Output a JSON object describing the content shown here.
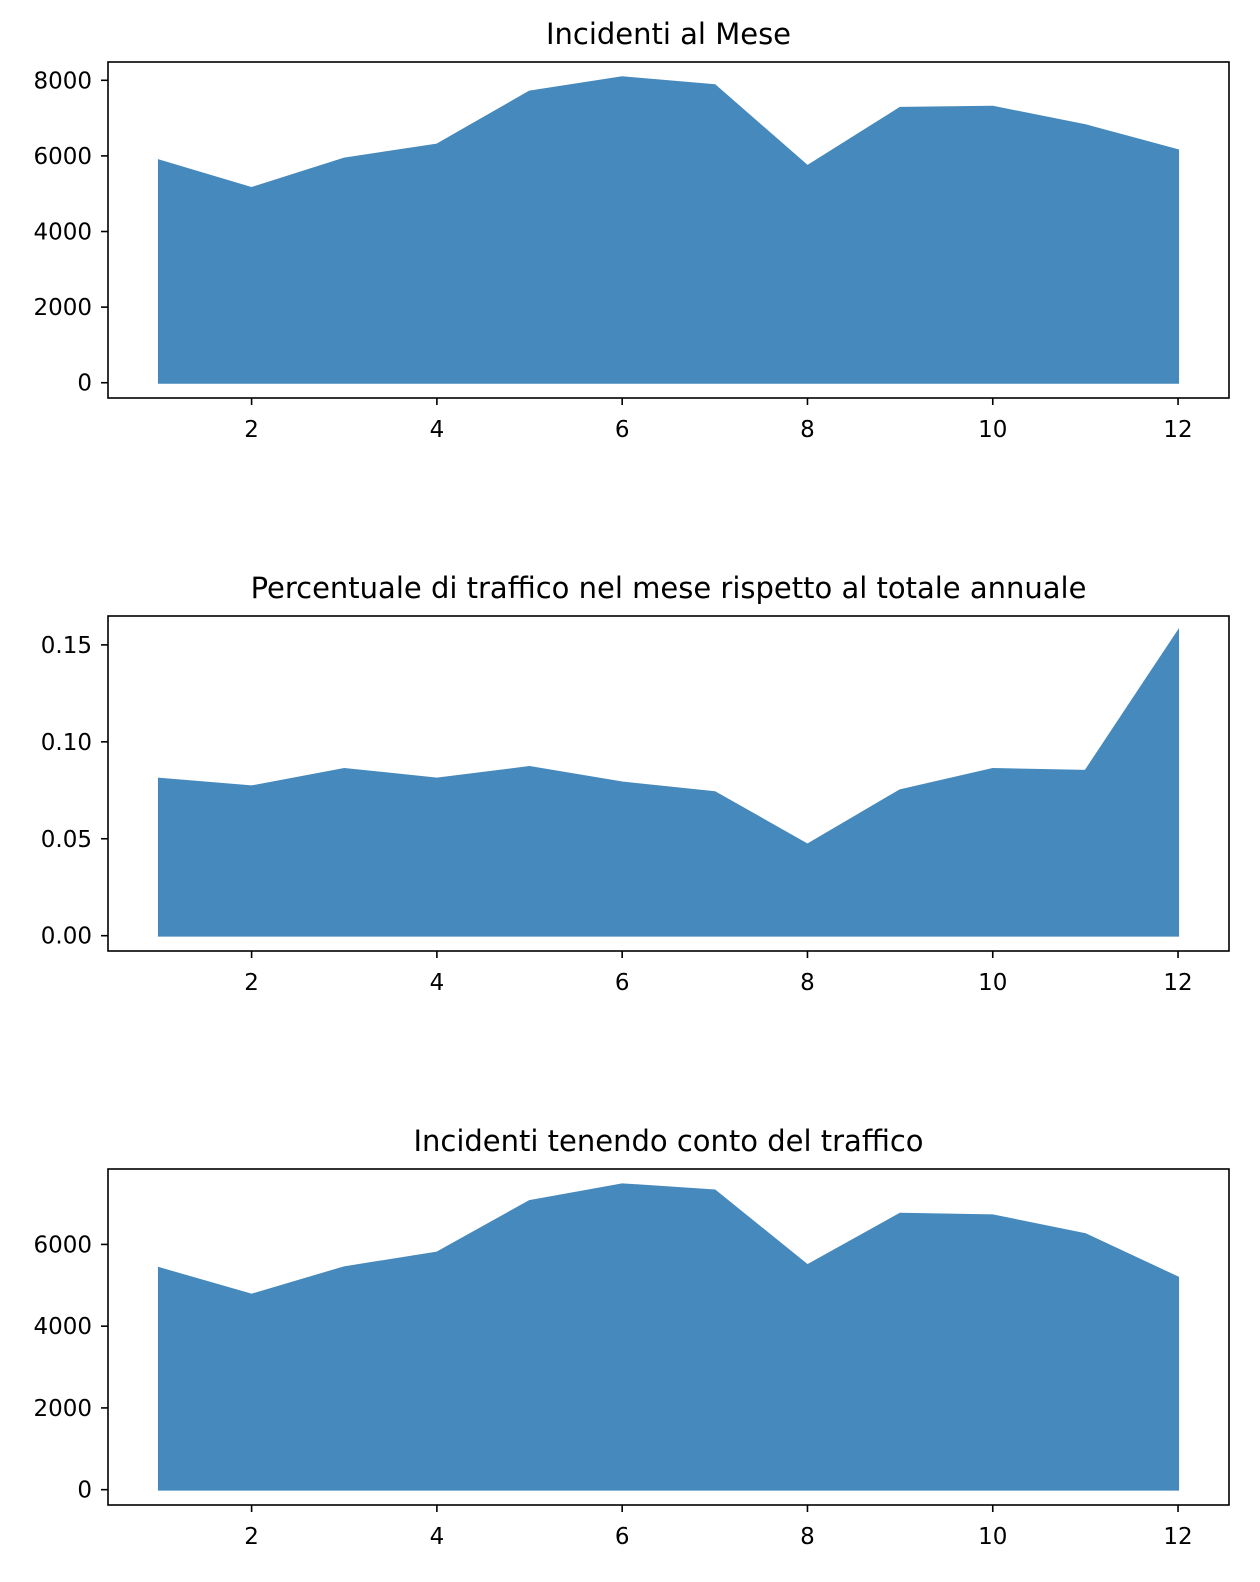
{
  "chart_data": [
    {
      "type": "area",
      "title": "Incidenti al Mese",
      "xlabel": "",
      "ylabel": "",
      "x": [
        1,
        2,
        3,
        4,
        5,
        6,
        7,
        8,
        9,
        10,
        11,
        12
      ],
      "series": [
        {
          "values": [
            5880,
            5150,
            5930,
            6300,
            7700,
            8080,
            7870,
            5730,
            7270,
            7300,
            6810,
            6150
          ]
        }
      ],
      "xlim": [
        0.45,
        12.55
      ],
      "ylim": [
        -404,
        8484
      ],
      "x_ticks": [
        2,
        4,
        6,
        8,
        10,
        12
      ],
      "x_tick_labels": [
        "2",
        "4",
        "6",
        "8",
        "10",
        "12"
      ],
      "y_ticks": [
        0,
        2000,
        4000,
        6000,
        8000
      ],
      "y_tick_labels": [
        "0",
        "2000",
        "4000",
        "6000",
        "8000"
      ],
      "grid": false,
      "legend": "none",
      "fill_color": "#4689BC"
    },
    {
      "type": "area",
      "title": "Percentuale di traffico nel mese rispetto al totale annuale",
      "xlabel": "",
      "ylabel": "",
      "x": [
        1,
        2,
        3,
        4,
        5,
        6,
        7,
        8,
        9,
        10,
        11,
        12
      ],
      "series": [
        {
          "values": [
            0.081,
            0.077,
            0.086,
            0.081,
            0.087,
            0.079,
            0.074,
            0.047,
            0.075,
            0.086,
            0.085,
            0.157
          ]
        }
      ],
      "xlim": [
        0.45,
        12.55
      ],
      "ylim": [
        -0.0079,
        0.1649
      ],
      "x_ticks": [
        2,
        4,
        6,
        8,
        10,
        12
      ],
      "x_tick_labels": [
        "2",
        "4",
        "6",
        "8",
        "10",
        "12"
      ],
      "y_ticks": [
        0.0,
        0.05,
        0.1,
        0.15
      ],
      "y_tick_labels": [
        "0.00",
        "0.05",
        "0.10",
        "0.15"
      ],
      "grid": false,
      "legend": "none",
      "fill_color": "#4689BC"
    },
    {
      "type": "area",
      "title": "Incidenti tenendo conto del traffico",
      "xlabel": "",
      "ylabel": "",
      "x": [
        1,
        2,
        3,
        4,
        5,
        6,
        7,
        8,
        9,
        10,
        11,
        12
      ],
      "series": [
        {
          "values": [
            5420,
            4770,
            5440,
            5800,
            7060,
            7470,
            7320,
            5490,
            6750,
            6710,
            6250,
            5190
          ]
        }
      ],
      "xlim": [
        0.45,
        12.55
      ],
      "ylim": [
        -375,
        7845
      ],
      "x_ticks": [
        2,
        4,
        6,
        8,
        10,
        12
      ],
      "x_tick_labels": [
        "2",
        "4",
        "6",
        "8",
        "10",
        "12"
      ],
      "y_ticks": [
        0,
        2000,
        4000,
        6000
      ],
      "y_tick_labels": [
        "0",
        "2000",
        "4000",
        "6000"
      ],
      "grid": false,
      "legend": "none",
      "fill_color": "#4689BC"
    }
  ]
}
